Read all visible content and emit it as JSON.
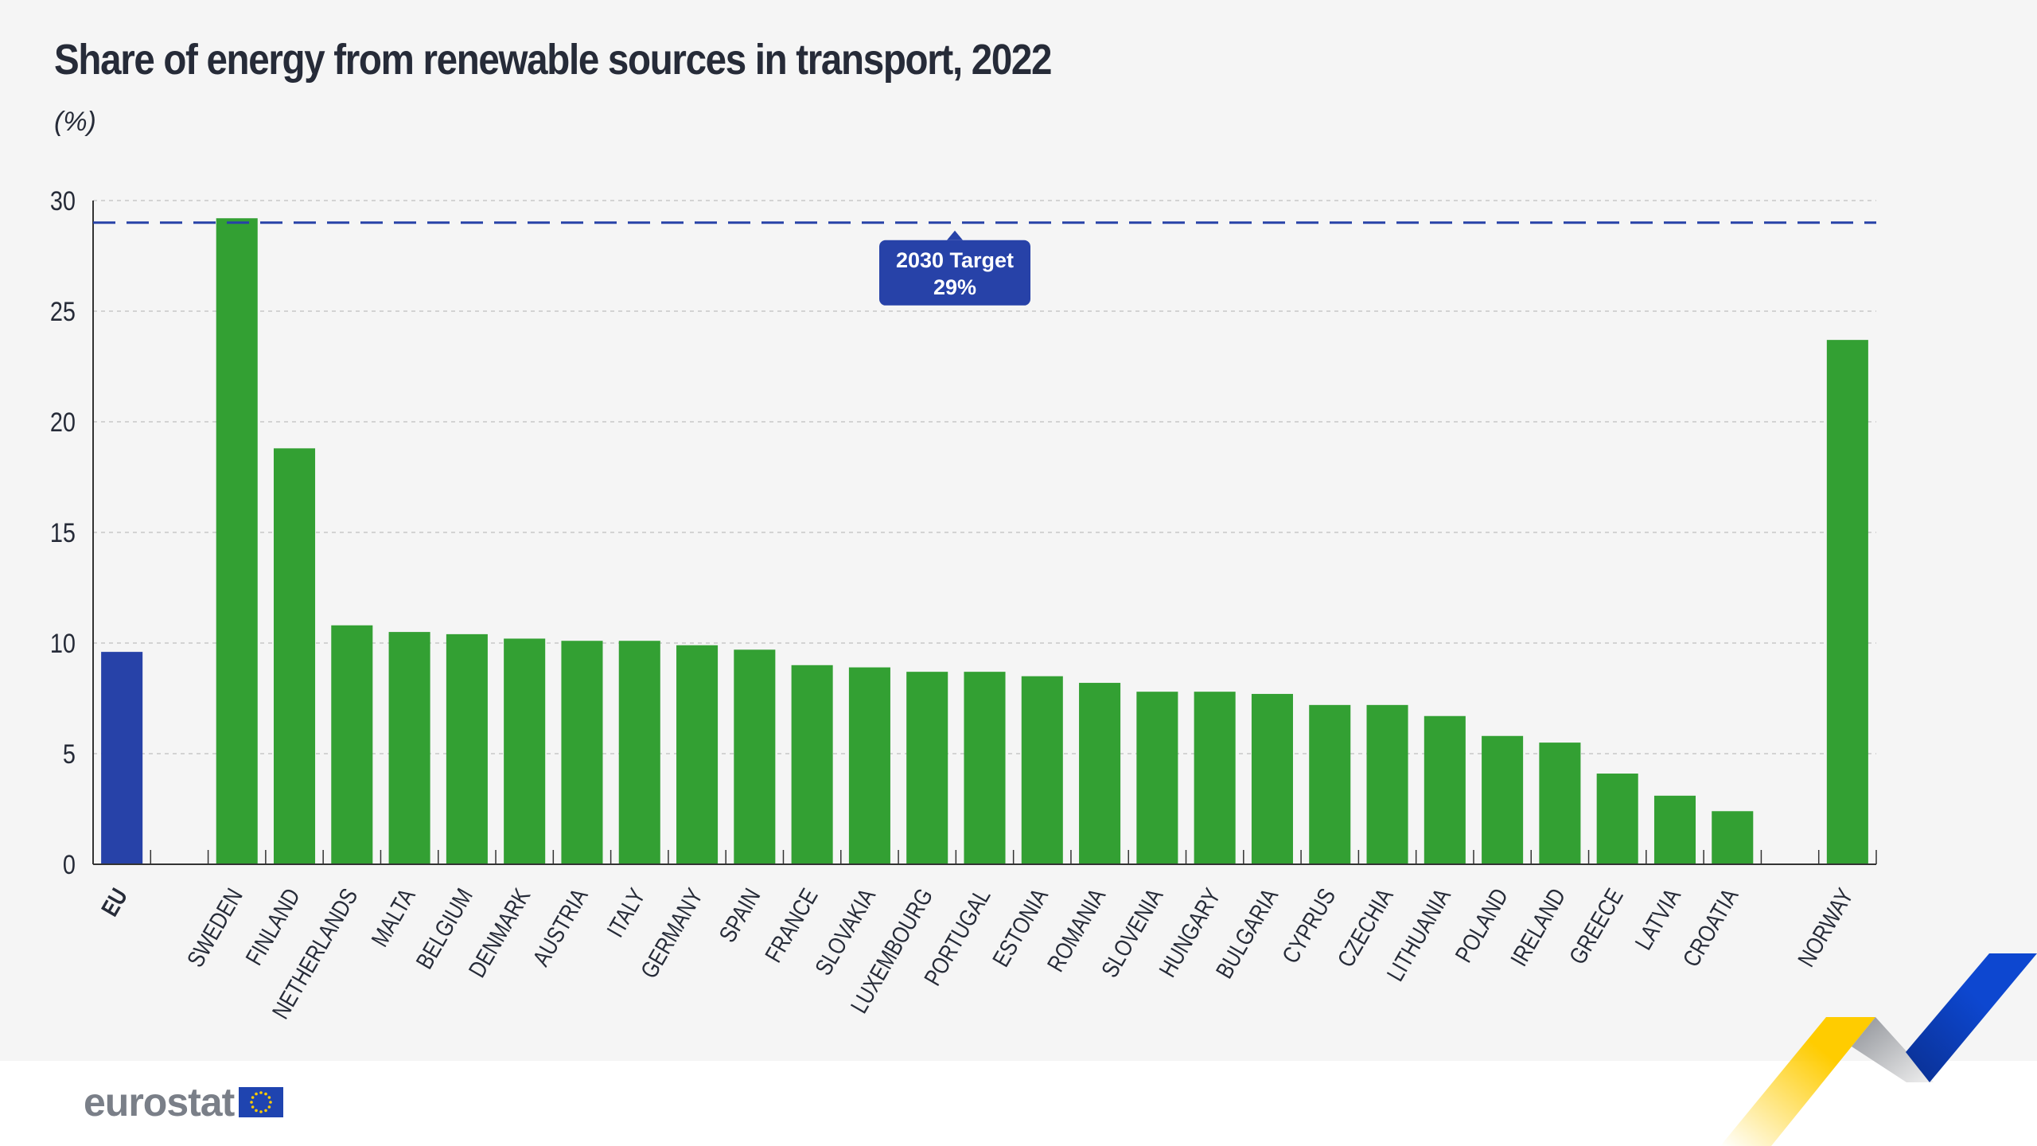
{
  "chart_data": {
    "type": "bar",
    "title": "Share of energy from renewable sources in transport, 2022",
    "subtitle": "(%)",
    "categories": [
      "EU",
      "SWEDEN",
      "FINLAND",
      "NETHERLANDS",
      "MALTA",
      "BELGIUM",
      "DENMARK",
      "AUSTRIA",
      "ITALY",
      "GERMANY",
      "SPAIN",
      "FRANCE",
      "SLOVAKIA",
      "LUXEMBOURG",
      "PORTUGAL",
      "ESTONIA",
      "ROMANIA",
      "SLOVENIA",
      "HUNGARY",
      "BULGARIA",
      "CYPRUS",
      "CZECHIA",
      "LITHUANIA",
      "POLAND",
      "IRELAND",
      "GREECE",
      "LATVIA",
      "CROATIA",
      "NORWAY"
    ],
    "values": [
      9.6,
      29.2,
      18.8,
      10.8,
      10.5,
      10.4,
      10.2,
      10.1,
      10.1,
      9.9,
      9.7,
      9.0,
      8.9,
      8.7,
      8.7,
      8.5,
      8.2,
      7.8,
      7.8,
      7.7,
      7.2,
      7.2,
      6.7,
      5.8,
      5.5,
      4.1,
      3.1,
      2.4,
      23.7
    ],
    "ylim": [
      0,
      30
    ],
    "yticks": [
      0,
      5,
      10,
      15,
      20,
      25,
      30
    ],
    "grid": true,
    "colors": {
      "eu": "#2742a8",
      "countries": "#33a033",
      "target": "#2742a8"
    },
    "target": {
      "value": 29,
      "label_line1": "2030 Target",
      "label_line2": "29%"
    }
  },
  "footer": {
    "logo_text": "eurostat"
  }
}
